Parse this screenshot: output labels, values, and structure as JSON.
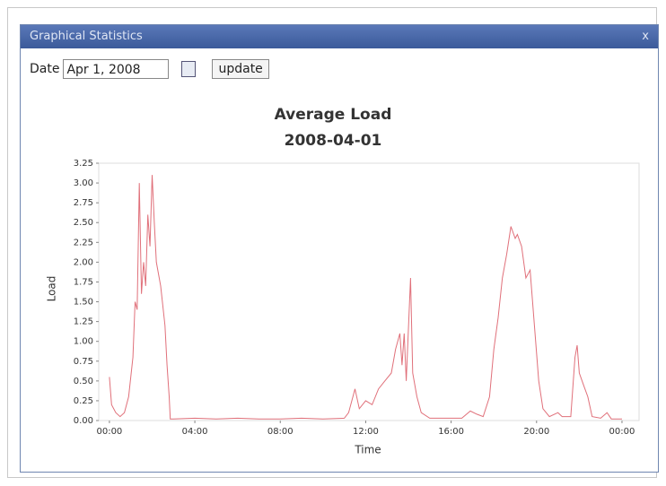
{
  "window": {
    "title": "Graphical Statistics",
    "close": "x"
  },
  "form": {
    "date_label": "Date",
    "date_value": "Apr 1, 2008",
    "button": "update"
  },
  "chart_data": {
    "type": "line",
    "title": "Average Load",
    "subtitle": "2008-04-01",
    "x_label": "Time",
    "y_label": "Load",
    "xlim": [
      -0.5,
      24.8
    ],
    "ylim": [
      0,
      3.25
    ],
    "xticks": [
      {
        "value": 0,
        "label": "00:00"
      },
      {
        "value": 4,
        "label": "04:00"
      },
      {
        "value": 8,
        "label": "08:00"
      },
      {
        "value": 12,
        "label": "12:00"
      },
      {
        "value": 16,
        "label": "16:00"
      },
      {
        "value": 20,
        "label": "20:00"
      },
      {
        "value": 24,
        "label": "00:00"
      }
    ],
    "yticks": [
      {
        "value": 0,
        "label": "0.00"
      },
      {
        "value": 0.25,
        "label": "0.25"
      },
      {
        "value": 0.5,
        "label": "0.50"
      },
      {
        "value": 0.75,
        "label": "0.75"
      },
      {
        "value": 1,
        "label": "1.00"
      },
      {
        "value": 1.25,
        "label": "1.25"
      },
      {
        "value": 1.5,
        "label": "1.50"
      },
      {
        "value": 1.75,
        "label": "1.75"
      },
      {
        "value": 2,
        "label": "2.00"
      },
      {
        "value": 2.25,
        "label": "2.25"
      },
      {
        "value": 2.5,
        "label": "2.50"
      },
      {
        "value": 2.75,
        "label": "2.75"
      },
      {
        "value": 3,
        "label": "3.00"
      },
      {
        "value": 3.25,
        "label": "3.25"
      }
    ],
    "grid": false,
    "series": [
      {
        "name": "Load",
        "color": "#e0707a",
        "x": [
          0.0,
          0.1,
          0.3,
          0.5,
          0.7,
          0.9,
          1.1,
          1.2,
          1.3,
          1.4,
          1.5,
          1.6,
          1.7,
          1.8,
          1.9,
          2.0,
          2.1,
          2.2,
          2.4,
          2.6,
          2.7,
          2.8,
          2.85,
          3.0,
          4.0,
          5.0,
          6.0,
          7.0,
          8.0,
          9.0,
          10.0,
          11.0,
          11.2,
          11.5,
          11.7,
          12.0,
          12.3,
          12.6,
          12.9,
          13.2,
          13.4,
          13.6,
          13.7,
          13.8,
          13.9,
          14.1,
          14.2,
          14.4,
          14.6,
          15.0,
          16.5,
          16.9,
          17.2,
          17.5,
          17.8,
          18.0,
          18.2,
          18.4,
          18.6,
          18.8,
          19.0,
          19.1,
          19.3,
          19.5,
          19.7,
          19.9,
          20.1,
          20.3,
          20.6,
          21.0,
          21.2,
          21.6,
          21.8,
          21.9,
          22.0,
          22.2,
          22.4,
          22.6,
          23.0,
          23.3,
          23.5,
          24.0
        ],
        "values": [
          0.55,
          0.2,
          0.1,
          0.05,
          0.1,
          0.3,
          0.8,
          1.5,
          1.4,
          3.0,
          1.6,
          2.0,
          1.7,
          2.6,
          2.2,
          3.1,
          2.5,
          2.0,
          1.7,
          1.2,
          0.7,
          0.3,
          0.02,
          0.02,
          0.03,
          0.02,
          0.03,
          0.02,
          0.02,
          0.03,
          0.02,
          0.03,
          0.1,
          0.4,
          0.15,
          0.25,
          0.2,
          0.4,
          0.5,
          0.6,
          0.9,
          1.1,
          0.7,
          1.1,
          0.5,
          1.8,
          0.6,
          0.3,
          0.1,
          0.03,
          0.03,
          0.12,
          0.08,
          0.05,
          0.3,
          0.9,
          1.3,
          1.8,
          2.1,
          2.45,
          2.3,
          2.35,
          2.2,
          1.8,
          1.9,
          1.2,
          0.5,
          0.15,
          0.05,
          0.1,
          0.05,
          0.05,
          0.8,
          0.95,
          0.6,
          0.45,
          0.3,
          0.05,
          0.03,
          0.1,
          0.02,
          0.02
        ]
      }
    ]
  }
}
